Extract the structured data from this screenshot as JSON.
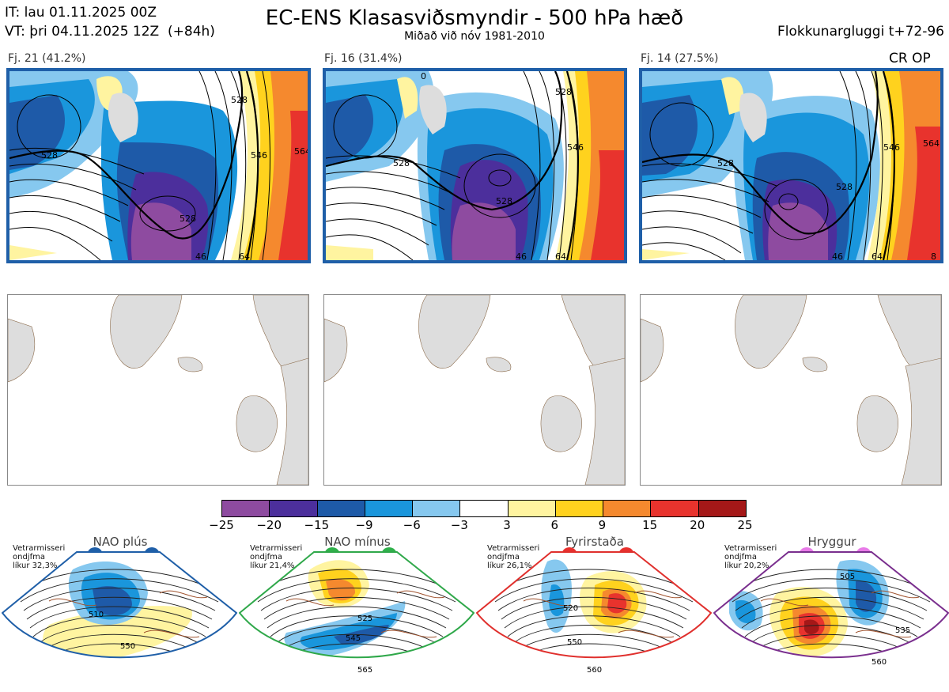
{
  "header": {
    "init_time": "IT: lau 01.11.2025 00Z",
    "valid_time": "VT: þri 04.11.2025 12Z  (+84h)",
    "title": "EC-ENS Klasasviðsmyndir - 500 hPa hæð",
    "subtitle": "Miðað við nóv 1981-2010",
    "cluster_window": "Flokkunargluggi t+72-96"
  },
  "clusters": [
    {
      "label": "Fj. 21 (41.2%)",
      "contours": [
        "528",
        "528",
        "528",
        "546",
        "564",
        "46",
        "64"
      ]
    },
    {
      "label": "Fj. 16 (31.4%)",
      "contours": [
        "528",
        "528",
        "528",
        "546",
        "46",
        "64"
      ],
      "extra": "0"
    },
    {
      "label": "Fj. 14 (27.5%)",
      "contours": [
        "528",
        "528",
        "546",
        "564",
        "46",
        "64",
        "8"
      ]
    }
  ],
  "cr_op": "CR OP",
  "colorbar": {
    "ticks": [
      "−25",
      "−20",
      "−15",
      "−9",
      "−6",
      "−3",
      "3",
      "6",
      "9",
      "15",
      "20",
      "25"
    ],
    "colors": [
      "#8e4ba0",
      "#4c2f9c",
      "#1e5aa8",
      "#1a96dc",
      "#86c8ef",
      "#ffffff",
      "#fff4a0",
      "#ffd21e",
      "#f5892e",
      "#e8332d",
      "#a51818"
    ]
  },
  "regimes": [
    {
      "name": "NAO plús",
      "prob_lines": [
        "Vetrarmisseri",
        "ondjfma",
        "líkur 32,3%"
      ],
      "contours": [
        "510",
        "550"
      ],
      "color": "#1f5fa8",
      "dot": "#1f5fa8"
    },
    {
      "name": "NAO mínus",
      "prob_lines": [
        "Vetrarmisseri",
        "ondjfma",
        "líkur 21,4%"
      ],
      "contours": [
        "525",
        "545",
        "565"
      ],
      "color": "#2fa84a",
      "dot": "#2fb04a"
    },
    {
      "name": "Fyrirstaða",
      "prob_lines": [
        "Vetrarmisseri",
        "ondjfma",
        "líkur 26,1%"
      ],
      "contours": [
        "520",
        "550",
        "560"
      ],
      "color": "#e0302d",
      "dot": "#e8302d"
    },
    {
      "name": "Hryggur",
      "prob_lines": [
        "Vetrarmisseri",
        "ondjfma",
        "líkur 20,2%"
      ],
      "contours": [
        "505",
        "535",
        "560"
      ],
      "color": "#7a2f8e",
      "dot": "#e87ae8"
    }
  ]
}
